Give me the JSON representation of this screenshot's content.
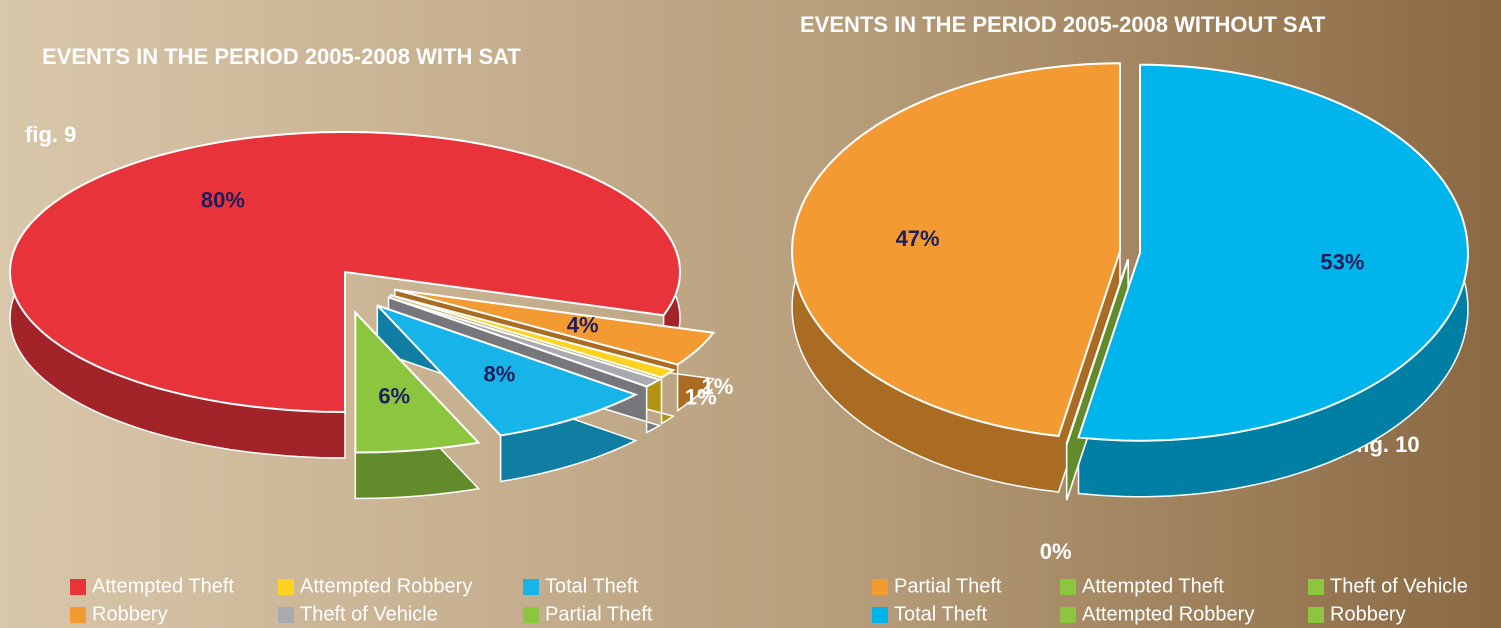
{
  "chart_data": [
    {
      "type": "pie",
      "title": "EVENTS IN THE PERIOD 2005-2008 WITH SAT",
      "figure_label": "fig. 9",
      "categories": [
        "Attempted Theft",
        "Robbery",
        "Attempted Robbery",
        "Theft of Vehicle",
        "Total Theft",
        "Partial Theft"
      ],
      "values": [
        80,
        4,
        1,
        1,
        8,
        6
      ],
      "value_labels": [
        "80%",
        "4%",
        "1%",
        "1%",
        "8%",
        "6%"
      ],
      "colors": [
        "#e8333a",
        "#f39a32",
        "#ffd21f",
        "#a9a9b0",
        "#16b4e8",
        "#8cc63f"
      ],
      "legend": true
    },
    {
      "type": "pie",
      "title": "EVENTS IN THE PERIOD 2005-2008 WITHOUT SAT",
      "figure_label": "fig. 10",
      "categories": [
        "Partial Theft",
        "Total Theft",
        "Attempted Theft",
        "Attempted Robbery",
        "Theft of Vehicle",
        "Robbery"
      ],
      "values": [
        47,
        53,
        0,
        0,
        0,
        0
      ],
      "value_labels": [
        "47%",
        "53%",
        "0%",
        null,
        null,
        null
      ],
      "colors": [
        "#f39a32",
        "#00b5eb",
        "#8cc63f",
        "#8cc63f",
        "#8cc63f",
        "#8cc63f"
      ],
      "legend": true
    }
  ]
}
